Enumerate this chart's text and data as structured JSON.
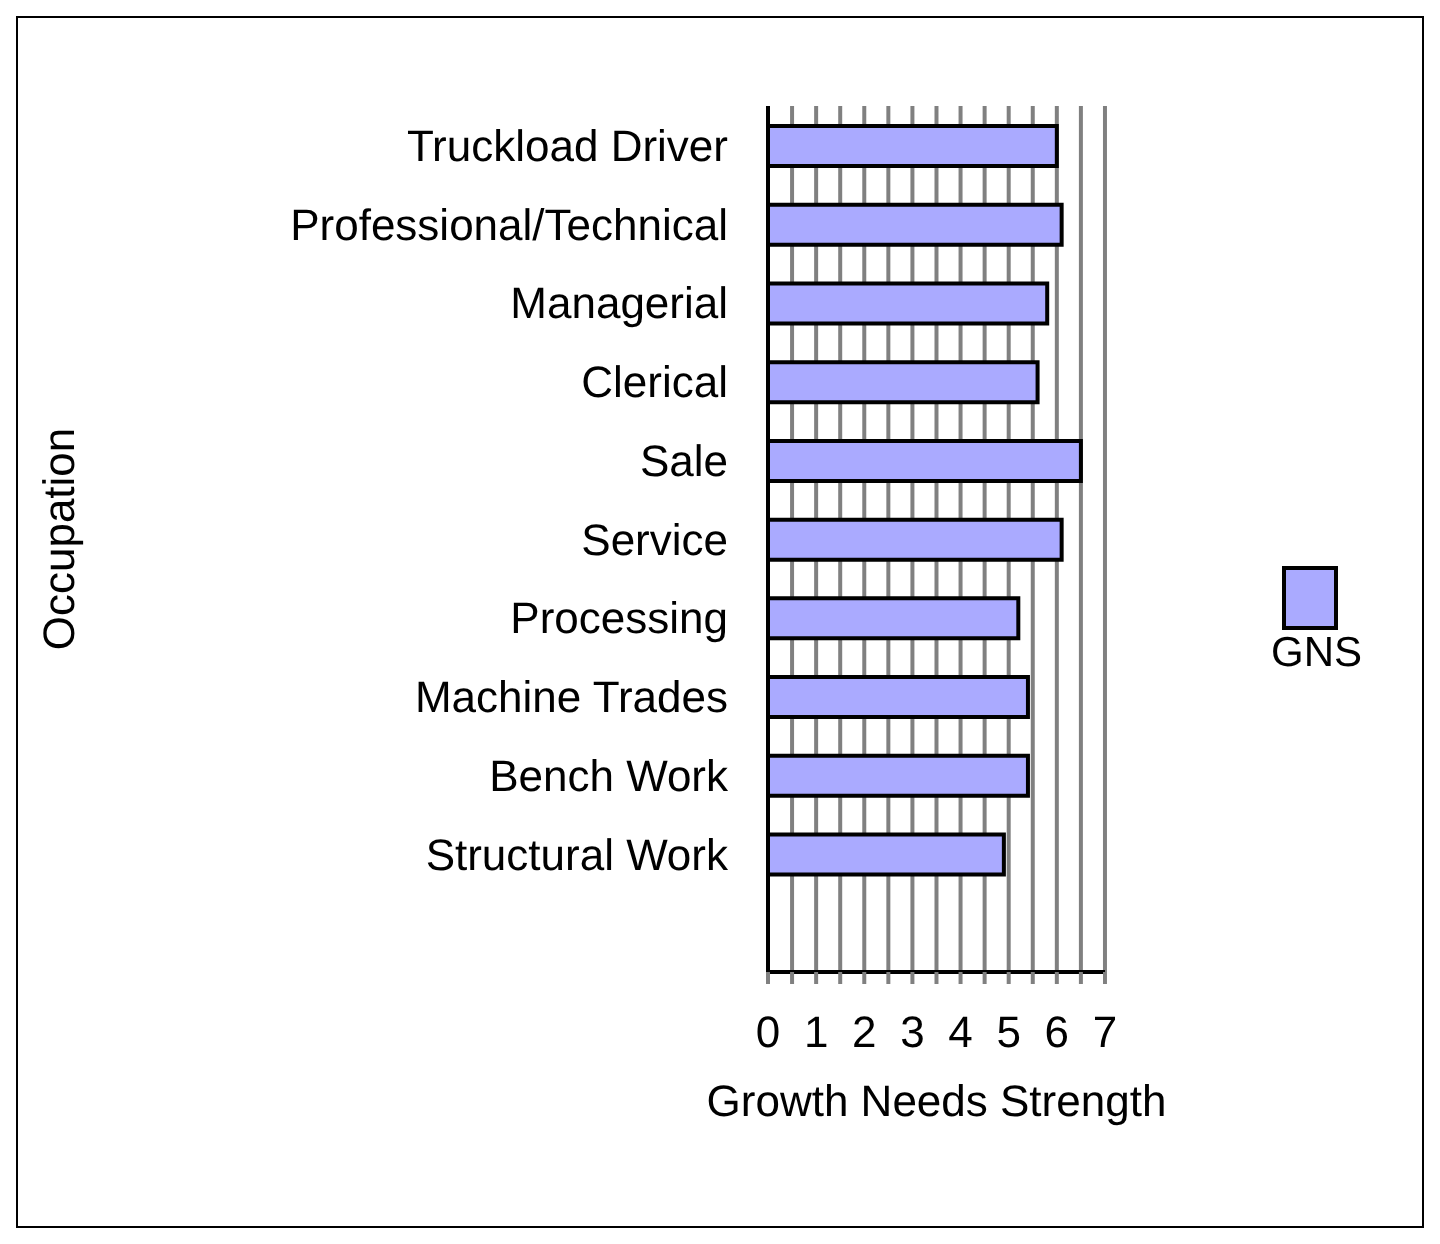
{
  "chart_data": {
    "type": "bar",
    "orientation": "horizontal",
    "xlabel": "Growth Needs Strength",
    "ylabel": "Occupation",
    "categories": [
      "Truckload Driver",
      "Professional/Technical",
      "Managerial",
      "Clerical",
      "Sale",
      "Service",
      "Processing",
      "Machine Trades",
      "Bench Work",
      "Structural Work",
      null
    ],
    "series": [
      {
        "name": "GNS",
        "color": "#aaaaff",
        "values": [
          6.0,
          6.1,
          5.8,
          5.6,
          6.5,
          6.1,
          5.2,
          5.4,
          5.4,
          4.9,
          null
        ]
      }
    ],
    "xlim": [
      0,
      7
    ],
    "xticks": [
      0,
      {
        "value": 0.5,
        "label": null
      },
      1,
      {
        "value": 1.5,
        "label": null
      },
      2,
      {
        "value": 2.5,
        "label": null
      },
      3,
      {
        "value": 3.5,
        "label": null
      },
      4,
      {
        "value": 4.5,
        "label": null
      },
      5,
      {
        "value": 5.5,
        "label": null
      },
      6,
      {
        "value": 6.5,
        "label": null
      },
      7
    ],
    "grid": "x",
    "legend": "right"
  }
}
